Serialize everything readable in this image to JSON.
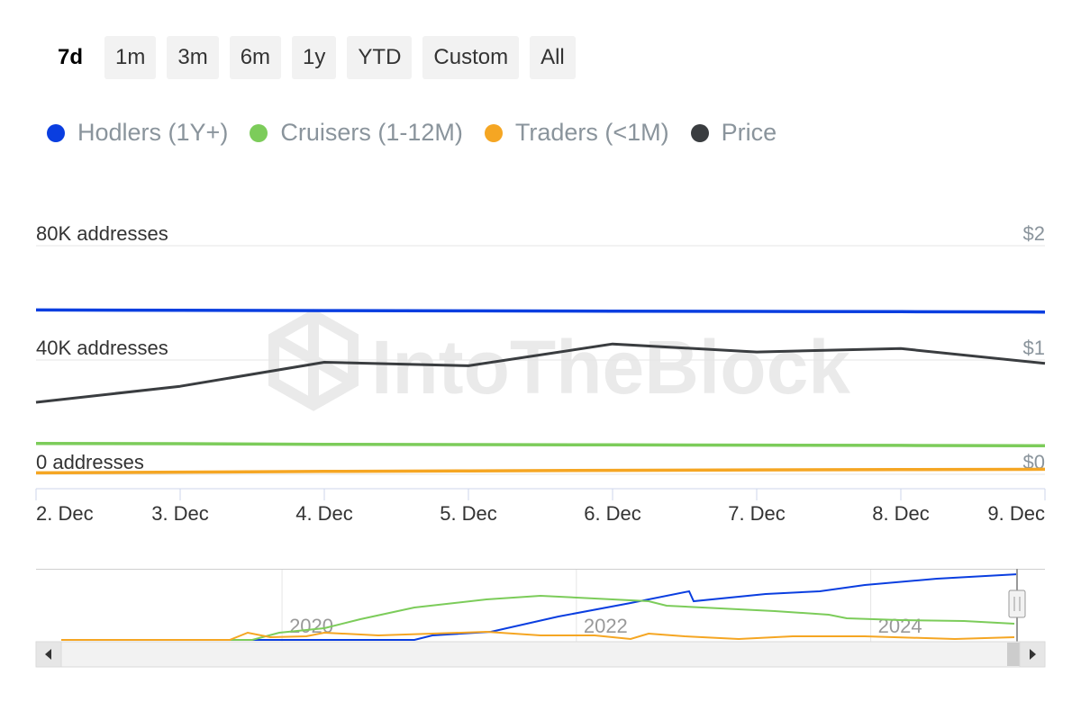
{
  "range_selector": {
    "buttons": [
      "7d",
      "1m",
      "3m",
      "6m",
      "1y",
      "YTD",
      "Custom",
      "All"
    ],
    "selected": "7d"
  },
  "legend": [
    {
      "name": "Hodlers (1Y+)",
      "color": "#0a3ee0"
    },
    {
      "name": "Cruisers (1-12M)",
      "color": "#7ccc5a"
    },
    {
      "name": "Traders (<1M)",
      "color": "#f5a623"
    },
    {
      "name": "Price",
      "color": "#3a3d40"
    }
  ],
  "watermark": "IntoTheBlock",
  "chart_data": {
    "type": "line",
    "x": [
      "2. Dec",
      "3. Dec",
      "4. Dec",
      "5. Dec",
      "6. Dec",
      "7. Dec",
      "8. Dec",
      "9. Dec"
    ],
    "y_left": {
      "tick_labels": [
        "80K addresses",
        "40K addresses",
        "0 addresses"
      ],
      "ylim": [
        0,
        80000
      ]
    },
    "y_right": {
      "tick_labels": [
        "$2",
        "$1",
        "$0"
      ],
      "ylim": [
        0,
        2
      ]
    },
    "grid": true,
    "series": [
      {
        "name": "Hodlers (1Y+)",
        "axis": "left",
        "color": "#0a3ee0",
        "values": [
          57500,
          57400,
          57300,
          57200,
          57100,
          57000,
          56900,
          56800
        ]
      },
      {
        "name": "Cruisers (1-12M)",
        "axis": "left",
        "color": "#7ccc5a",
        "values": [
          10800,
          10700,
          10500,
          10400,
          10300,
          10200,
          10100,
          10000
        ]
      },
      {
        "name": "Traders (<1M)",
        "axis": "left",
        "color": "#f5a623",
        "values": [
          500,
          750,
          1000,
          1200,
          1400,
          1550,
          1650,
          1750
        ]
      },
      {
        "name": "Price",
        "axis": "right",
        "color": "#3a3d40",
        "values": [
          0.63,
          0.77,
          0.98,
          0.95,
          1.14,
          1.07,
          1.1,
          0.97
        ]
      }
    ],
    "navigator": {
      "x_labels": [
        "2020",
        "2022",
        "2024"
      ],
      "year_range": [
        2018.5,
        2025
      ]
    }
  }
}
